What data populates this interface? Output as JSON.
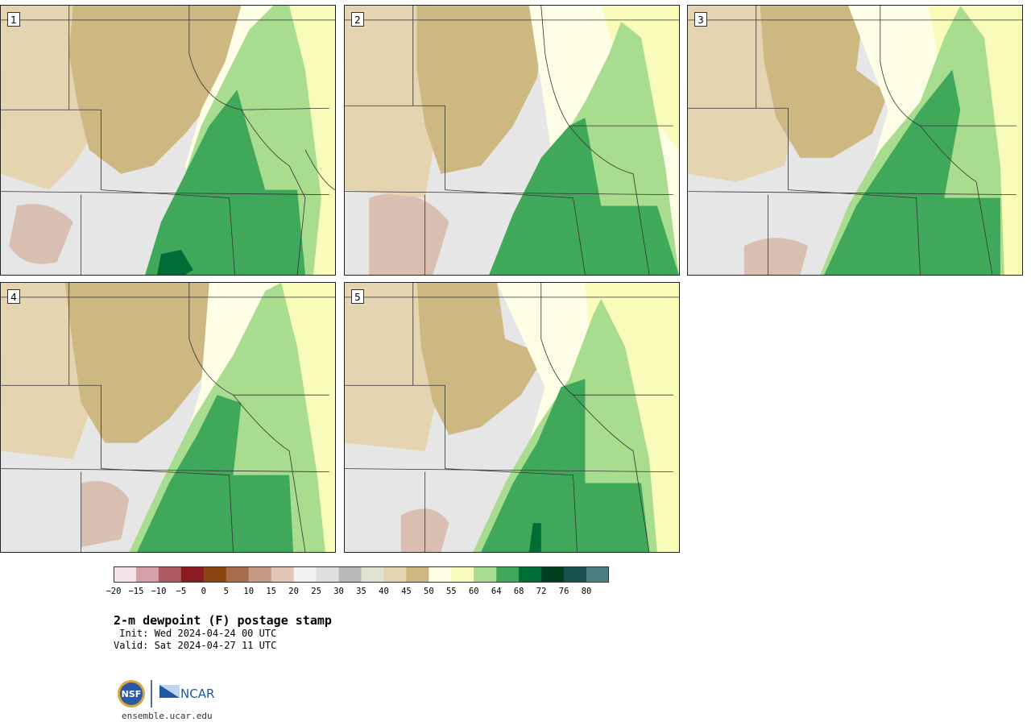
{
  "panels": [
    {
      "label": "1"
    },
    {
      "label": "2"
    },
    {
      "label": "3"
    },
    {
      "label": "4"
    },
    {
      "label": "5"
    }
  ],
  "colorbar": {
    "ticks": [
      "−20",
      "−15",
      "−10",
      "−5",
      "0",
      "5",
      "10",
      "15",
      "20",
      "25",
      "30",
      "35",
      "40",
      "45",
      "50",
      "55",
      "60",
      "64",
      "68",
      "72",
      "76",
      "80"
    ],
    "colors": [
      "#f4e4e8",
      "#d7a0a8",
      "#b05a62",
      "#8c1a22",
      "#8a4510",
      "#a86e4c",
      "#c49a82",
      "#e2c6b6",
      "#f1f1f1",
      "#dfdfdf",
      "#b8b8b8",
      "#e2e2d2",
      "#e4d4b0",
      "#cdb882",
      "#fefee6",
      "#f8fcb8",
      "#a8dc8e",
      "#40a85a",
      "#006c36",
      "#00401e",
      "#17504e",
      "#4c7e82"
    ]
  },
  "title": "2-m dewpoint (F) postage stamp",
  "init": " Init: Wed 2024-04-24 00 UTC",
  "valid": "Valid: Sat 2024-04-27 11 UTC",
  "logos": {
    "nsf": "NSF",
    "ncar": "NCAR"
  },
  "website": "ensemble.ucar.edu"
}
